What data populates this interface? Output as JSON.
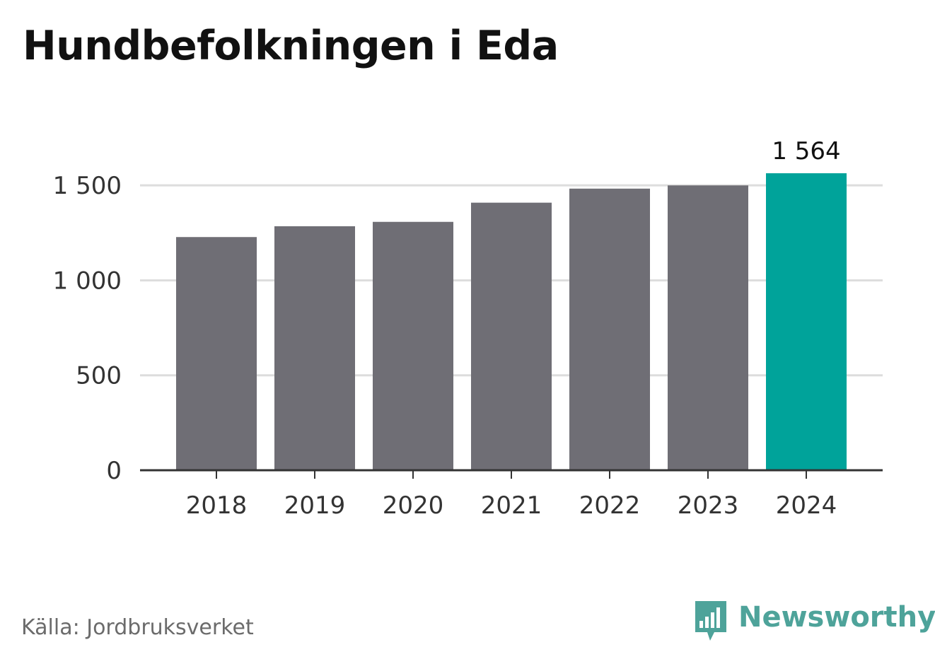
{
  "page": {
    "title": "Hundbefolkningen i Eda",
    "source": "Källa: Jordbruksverket",
    "brand": {
      "name": "Newsworthy",
      "icon": "newsworthy-logo-icon",
      "color": "#4ea39a"
    }
  },
  "colors": {
    "bar_default": "#6f6e75",
    "bar_highlight": "#00a39a",
    "grid": "#dddddd",
    "axis": "#333333",
    "tick_text": "#333333"
  },
  "chart_data": {
    "type": "bar",
    "title": "Hundbefolkningen i Eda",
    "xlabel": "",
    "ylabel": "",
    "categories": [
      "2018",
      "2019",
      "2020",
      "2021",
      "2022",
      "2023",
      "2024"
    ],
    "values": [
      1228,
      1285,
      1308,
      1409,
      1483,
      1500,
      1564
    ],
    "highlight_index": 6,
    "data_labels": [
      {
        "index": 6,
        "text": "1 564"
      }
    ],
    "ylim": [
      0,
      1564
    ],
    "yticks": [
      {
        "value": 0,
        "label": "0"
      },
      {
        "value": 500,
        "label": "500"
      },
      {
        "value": 1000,
        "label": "1 000"
      },
      {
        "value": 1500,
        "label": "1 500"
      }
    ],
    "grid": true,
    "legend": "none"
  }
}
